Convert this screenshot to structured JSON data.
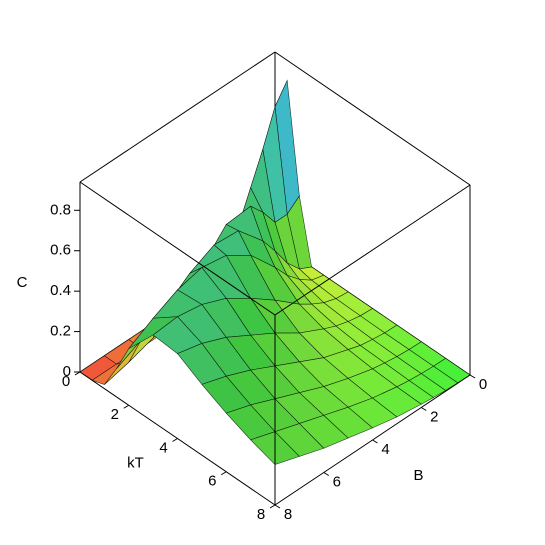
{
  "chart_data": {
    "type": "surface",
    "xlabel": "kT",
    "ylabel": "B",
    "zlabel": "C",
    "x": [
      0,
      0.5,
      1,
      1.5,
      2,
      3,
      4,
      5,
      6,
      7,
      8
    ],
    "y": [
      0,
      0.5,
      1,
      1.5,
      2,
      3,
      4,
      5,
      6,
      7,
      8
    ],
    "z": [
      [
        0,
        0,
        0,
        0,
        0,
        0,
        0,
        0,
        0,
        0,
        0
      ],
      [
        0.84,
        0.75,
        0.58,
        0.43,
        0.28,
        0.09,
        0.02,
        0.0,
        0,
        0,
        0
      ],
      [
        0.31,
        0.26,
        0.26,
        0.35,
        0.42,
        0.41,
        0.28,
        0.17,
        0.09,
        0.05,
        0.02
      ],
      [
        0.0,
        0.03,
        0.1,
        0.2,
        0.29,
        0.42,
        0.43,
        0.37,
        0.28,
        0.2,
        0.14
      ],
      [
        0,
        0.016,
        0.06,
        0.12,
        0.2,
        0.34,
        0.42,
        0.44,
        0.41,
        0.35,
        0.28
      ],
      [
        0,
        0.007,
        0.027,
        0.06,
        0.1,
        0.2,
        0.29,
        0.37,
        0.42,
        0.44,
        0.43
      ],
      [
        0,
        0.004,
        0.016,
        0.034,
        0.06,
        0.12,
        0.2,
        0.27,
        0.34,
        0.39,
        0.42
      ],
      [
        0,
        0.002,
        0.01,
        0.02,
        0.04,
        0.08,
        0.14,
        0.2,
        0.26,
        0.31,
        0.35
      ],
      [
        0,
        0.002,
        0.007,
        0.016,
        0.027,
        0.06,
        0.1,
        0.15,
        0.2,
        0.25,
        0.29
      ],
      [
        0,
        0.001,
        0.005,
        0.011,
        0.02,
        0.045,
        0.08,
        0.12,
        0.16,
        0.2,
        0.24
      ],
      [
        0,
        0.001,
        0.004,
        0.009,
        0.016,
        0.034,
        0.06,
        0.09,
        0.12,
        0.16,
        0.2
      ]
    ],
    "xlim": [
      0,
      8
    ],
    "ylim": [
      0,
      8
    ],
    "zlim": [
      0,
      0.94
    ],
    "xticks": [
      0,
      2,
      4,
      6,
      8
    ],
    "yticks": [
      0,
      2,
      4,
      6,
      8
    ],
    "zticks": [
      0,
      0.2,
      0.4,
      0.6,
      0.8
    ]
  }
}
